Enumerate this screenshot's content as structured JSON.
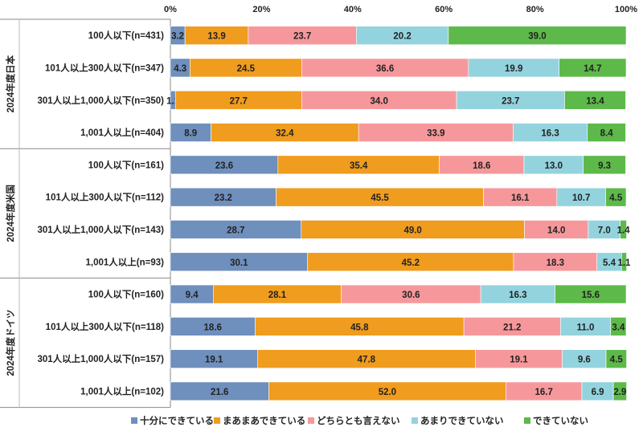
{
  "chart_data": {
    "type": "bar",
    "stacked": true,
    "orientation": "horizontal",
    "percent_scale": true,
    "xlim": [
      0,
      100
    ],
    "x_ticks": [
      "0%",
      "20%",
      "40%",
      "60%",
      "80%",
      "100%"
    ],
    "legend_position": "bottom",
    "colors": [
      "#6f8fbd",
      "#f09c1e",
      "#f6989b",
      "#93d3de",
      "#5db949"
    ],
    "series": [
      {
        "name": "十分にできている"
      },
      {
        "name": "まあまあできている"
      },
      {
        "name": "どちらとも言えない"
      },
      {
        "name": "あまりできていない"
      },
      {
        "name": "できていない"
      }
    ],
    "groups": [
      {
        "label": "2024年度日本",
        "rows": [
          {
            "label": "100人以下(n=431)",
            "values": [
              3.2,
              13.9,
              23.7,
              20.2,
              39.0
            ]
          },
          {
            "label": "101人以上300人以下(n=347)",
            "values": [
              4.3,
              24.5,
              36.6,
              19.9,
              14.7
            ]
          },
          {
            "label": "301人以上1,000人以下(n=350)",
            "values": [
              1.1,
              27.7,
              34.0,
              23.7,
              13.4
            ]
          },
          {
            "label": "1,001人以上(n=404)",
            "values": [
              8.9,
              32.4,
              33.9,
              16.3,
              8.4
            ]
          }
        ]
      },
      {
        "label": "2024年度米国",
        "rows": [
          {
            "label": "100人以下(n=161)",
            "values": [
              23.6,
              35.4,
              18.6,
              13.0,
              9.3
            ]
          },
          {
            "label": "101人以上300人以下(n=112)",
            "values": [
              23.2,
              45.5,
              16.1,
              10.7,
              4.5
            ]
          },
          {
            "label": "301人以上1,000人以下(n=143)",
            "values": [
              28.7,
              49.0,
              14.0,
              7.0,
              1.4
            ]
          },
          {
            "label": "1,001人以上(n=93)",
            "values": [
              30.1,
              45.2,
              18.3,
              5.4,
              1.1
            ]
          }
        ]
      },
      {
        "label": "2024年度ドイツ",
        "rows": [
          {
            "label": "100人以下(n=160)",
            "values": [
              9.4,
              28.1,
              30.6,
              16.3,
              15.6
            ]
          },
          {
            "label": "101人以上300人以下(n=118)",
            "values": [
              18.6,
              45.8,
              21.2,
              11.0,
              3.4
            ]
          },
          {
            "label": "301人以上1,000人以下(n=157)",
            "values": [
              19.1,
              47.8,
              19.1,
              9.6,
              4.5
            ]
          },
          {
            "label": "1,001人以上(n=102)",
            "values": [
              21.6,
              52.0,
              16.7,
              6.9,
              2.9
            ]
          }
        ]
      }
    ]
  }
}
